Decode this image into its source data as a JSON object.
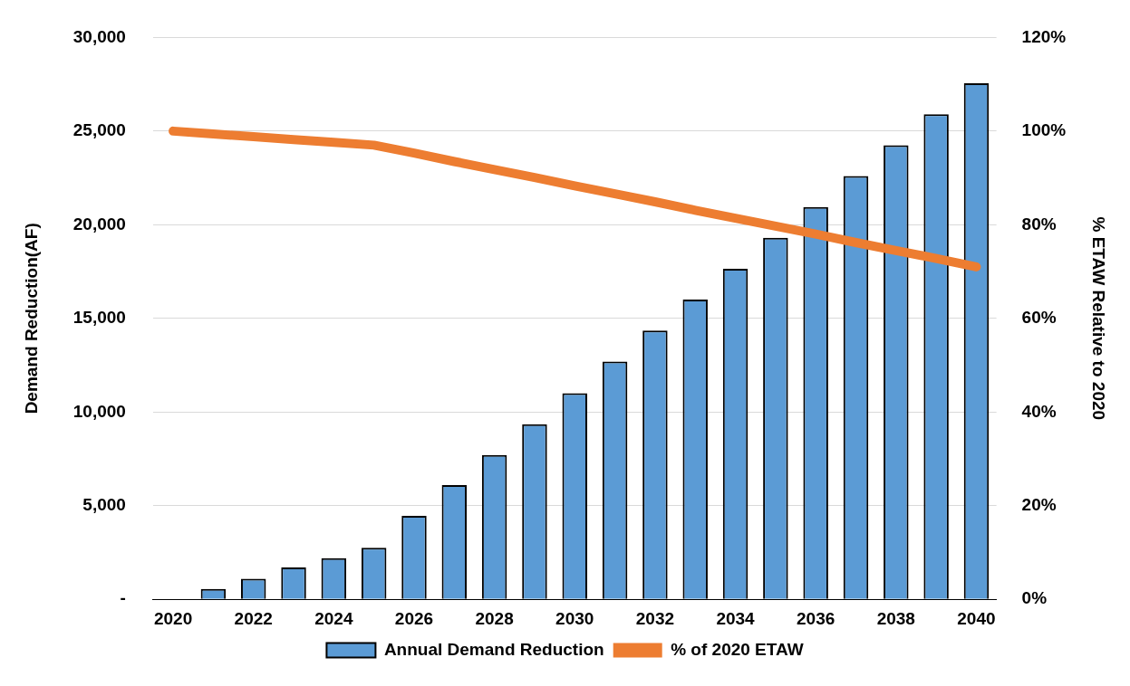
{
  "chart_data": {
    "type": "bar",
    "ylabel": "Demand Reduction(AF)",
    "y2label": "% ETAW Relative to 2020",
    "categories": [
      "2020",
      null,
      "2022",
      null,
      "2024",
      null,
      "2026",
      null,
      "2028",
      null,
      "2030",
      null,
      "2032",
      null,
      "2034",
      null,
      "2036",
      null,
      "2038",
      null,
      "2040"
    ],
    "series": [
      {
        "name": "Annual Demand Reduction",
        "color": "#5b9bd5",
        "values": [
          0,
          550,
          1100,
          1700,
          2200,
          2750,
          4450,
          6100,
          7700,
          9350,
          11000,
          12700,
          14350,
          16000,
          17650,
          19300,
          20950,
          22600,
          24250,
          25900,
          27550
        ]
      },
      {
        "name": "% of 2020 ETAW",
        "type": "line",
        "axis": "y2",
        "color": "#ed7d31",
        "values": [
          100,
          99.4,
          98.8,
          98.2,
          97.6,
          97,
          95.3,
          93.5,
          91.8,
          90.1,
          88.3,
          86.6,
          84.9,
          83.1,
          81.4,
          79.7,
          78,
          76.2,
          74.5,
          72.8,
          71
        ]
      }
    ],
    "ylim": [
      0,
      30000
    ],
    "yticks": [
      {
        "value": 0,
        "label": "-"
      },
      {
        "value": 5000,
        "label": "5,000"
      },
      {
        "value": 10000,
        "label": "10,000"
      },
      {
        "value": 15000,
        "label": "15,000"
      },
      {
        "value": 20000,
        "label": "20,000"
      },
      {
        "value": 25000,
        "label": "25,000"
      },
      {
        "value": 30000,
        "label": "30,000"
      }
    ],
    "y2lim": [
      0,
      120
    ],
    "y2ticks": [
      {
        "value": 0,
        "label": "0%"
      },
      {
        "value": 20,
        "label": "20%"
      },
      {
        "value": 40,
        "label": "40%"
      },
      {
        "value": 60,
        "label": "60%"
      },
      {
        "value": 80,
        "label": "80%"
      },
      {
        "value": 100,
        "label": "100%"
      },
      {
        "value": 120,
        "label": "120%"
      }
    ],
    "grid": "y",
    "legend": "bottom",
    "marker": "none"
  }
}
